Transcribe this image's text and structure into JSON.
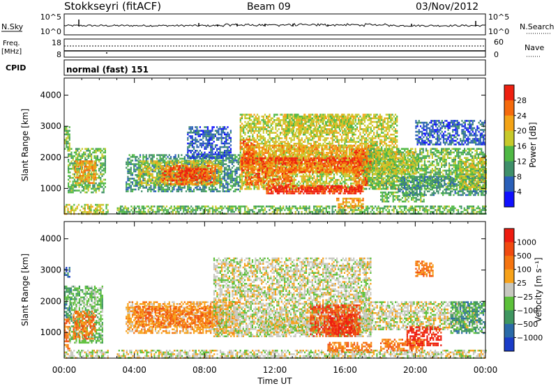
{
  "header": {
    "station": "Stokkseyri (fitACF)",
    "beam": "Beam 09",
    "date": "03/Nov/2012"
  },
  "status_rows": {
    "nsky": {
      "label": "N.Sky",
      "tick_top": "10^5",
      "tick_bottom": "10^0"
    },
    "freq": {
      "label_line1": "Freq.",
      "label_line2": "[MHz]",
      "tick_top": "18",
      "tick_bottom": "8"
    },
    "nsearch": {
      "label": "N.Search",
      "tick_top": "10^5",
      "tick_bottom": "10^0"
    },
    "nave": {
      "label": "Nave",
      "tick_top": "60",
      "tick_bottom": "0"
    },
    "cpid": {
      "label": "CPID",
      "value": "normal (fast) 151"
    }
  },
  "x_axis": {
    "label": "Time UT",
    "ticks": [
      "00:00",
      "04:00",
      "08:00",
      "12:00",
      "16:00",
      "20:00",
      "00:00"
    ]
  },
  "chart_data": [
    {
      "type": "heatmap",
      "id": "power",
      "ylabel": "Slant Range [km]",
      "y_ticks": [
        1000,
        2000,
        3000,
        4000
      ],
      "ylim": [
        180,
        4550
      ],
      "xlim_hours": [
        0,
        24
      ],
      "colorbar": {
        "label": "Power [dB]",
        "ticks": [
          "4",
          "8",
          "12",
          "16",
          "20",
          "24",
          "28"
        ],
        "colors": [
          "#1010ff",
          "#2a5fb8",
          "#3f8f6a",
          "#4fb844",
          "#c7c92a",
          "#f3a316",
          "#f56a0c",
          "#ee2010"
        ]
      },
      "regions": [
        {
          "t": [
            0.0,
            0.3
          ],
          "r": [
            2200,
            3000
          ],
          "level": 3
        },
        {
          "t": [
            0.0,
            2.5
          ],
          "r": [
            180,
            500
          ],
          "level": 4
        },
        {
          "t": [
            0.2,
            2.3
          ],
          "r": [
            900,
            2300
          ],
          "level": 3
        },
        {
          "t": [
            0.6,
            1.8
          ],
          "r": [
            1200,
            1900
          ],
          "level": 5
        },
        {
          "t": [
            3.5,
            10.0
          ],
          "r": [
            900,
            2100
          ],
          "level": 2
        },
        {
          "t": [
            4.2,
            9.0
          ],
          "r": [
            1100,
            1900
          ],
          "level": 4
        },
        {
          "t": [
            5.5,
            8.6
          ],
          "r": [
            1150,
            1750
          ],
          "level": 6
        },
        {
          "t": [
            6.5,
            8.0
          ],
          "r": [
            1250,
            1650
          ],
          "level": 7
        },
        {
          "t": [
            3.0,
            24.0
          ],
          "r": [
            180,
            450
          ],
          "level": 3
        },
        {
          "t": [
            7.0,
            9.5
          ],
          "r": [
            2000,
            3000
          ],
          "level": 1
        },
        {
          "t": [
            10.0,
            19.0
          ],
          "r": [
            1000,
            3400
          ],
          "level": 4
        },
        {
          "t": [
            10.2,
            17.5
          ],
          "r": [
            1500,
            2400
          ],
          "level": 5
        },
        {
          "t": [
            10.0,
            17.5
          ],
          "r": [
            1800,
            2000
          ],
          "level": 7
        },
        {
          "t": [
            11.0,
            17.5
          ],
          "r": [
            1550,
            1850
          ],
          "level": 6
        },
        {
          "t": [
            10.3,
            13.0
          ],
          "r": [
            1100,
            1500
          ],
          "level": 6
        },
        {
          "t": [
            11.5,
            17.0
          ],
          "r": [
            850,
            1100
          ],
          "level": 7
        },
        {
          "t": [
            12.0,
            17.0
          ],
          "r": [
            900,
            1050
          ],
          "level": 7
        },
        {
          "t": [
            15.5,
            17.0
          ],
          "r": [
            400,
            700
          ],
          "level": 5
        },
        {
          "t": [
            17.0,
            24.0
          ],
          "r": [
            1000,
            2300
          ],
          "level": 3
        },
        {
          "t": [
            17.2,
            20.0
          ],
          "r": [
            1500,
            2200
          ],
          "level": 4
        },
        {
          "t": [
            18.0,
            20.5
          ],
          "r": [
            600,
            900
          ],
          "level": 3
        },
        {
          "t": [
            19.0,
            24.0
          ],
          "r": [
            800,
            1400
          ],
          "level": 2
        },
        {
          "t": [
            20.0,
            24.0
          ],
          "r": [
            2400,
            3200
          ],
          "level": 1
        },
        {
          "t": [
            22.5,
            24.0
          ],
          "r": [
            1000,
            2000
          ],
          "level": 4
        },
        {
          "t": [
            12.5,
            16.5
          ],
          "r": [
            2800,
            3400
          ],
          "level": 4
        },
        {
          "t": [
            10.0,
            10.8
          ],
          "r": [
            1500,
            2600
          ],
          "level": 6
        },
        {
          "t": [
            16.5,
            17.2
          ],
          "r": [
            1100,
            2300
          ],
          "level": 6
        }
      ]
    },
    {
      "type": "heatmap",
      "id": "velocity",
      "ylabel": "Slant Range [km]",
      "y_ticks": [
        1000,
        2000,
        3000,
        4000
      ],
      "ylim": [
        180,
        4550
      ],
      "xlim_hours": [
        0,
        24
      ],
      "colorbar": {
        "label": "Velocity [m s⁻¹]",
        "ticks": [
          "1000",
          "500",
          "100",
          "25",
          "−25",
          "−100",
          "−500",
          "−1000"
        ],
        "colors": [
          "#1a3cc8",
          "#2a6aa8",
          "#3f9660",
          "#5cc03a",
          "#c8c8c0",
          "#f7a21a",
          "#f57410",
          "#f04a10",
          "#ee1c10"
        ]
      },
      "regions": [
        {
          "t": [
            0.0,
            2.5
          ],
          "r": [
            180,
            450
          ],
          "level": 4
        },
        {
          "t": [
            0.0,
            0.3
          ],
          "r": [
            500,
            1500
          ],
          "level": 6
        },
        {
          "t": [
            0.3,
            2.2
          ],
          "r": [
            700,
            2500
          ],
          "level": 3
        },
        {
          "t": [
            0.5,
            1.8
          ],
          "r": [
            800,
            1700
          ],
          "level": 6
        },
        {
          "t": [
            0.0,
            0.4
          ],
          "r": [
            1500,
            2500
          ],
          "level": 2
        },
        {
          "t": [
            3.5,
            10.0
          ],
          "r": [
            1000,
            2000
          ],
          "level": 5
        },
        {
          "t": [
            4.0,
            9.0
          ],
          "r": [
            1200,
            1850
          ],
          "level": 6
        },
        {
          "t": [
            3.0,
            24.0
          ],
          "r": [
            180,
            450
          ],
          "level": 4
        },
        {
          "t": [
            8.5,
            17.5
          ],
          "r": [
            900,
            3400
          ],
          "level": 4
        },
        {
          "t": [
            11.0,
            17.5
          ],
          "r": [
            1000,
            1500
          ],
          "level": 4
        },
        {
          "t": [
            14.0,
            16.8
          ],
          "r": [
            900,
            1900
          ],
          "level": 7
        },
        {
          "t": [
            15.0,
            16.5
          ],
          "r": [
            1000,
            1600
          ],
          "level": 8
        },
        {
          "t": [
            15.0,
            17.5
          ],
          "r": [
            400,
            700
          ],
          "level": 6
        },
        {
          "t": [
            17.0,
            23.5
          ],
          "r": [
            1100,
            2000
          ],
          "level": 4
        },
        {
          "t": [
            18.0,
            20.5
          ],
          "r": [
            450,
            800
          ],
          "level": 6
        },
        {
          "t": [
            19.5,
            21.5
          ],
          "r": [
            600,
            1200
          ],
          "level": 8
        },
        {
          "t": [
            22.0,
            24.0
          ],
          "r": [
            1000,
            2000
          ],
          "level": 2
        },
        {
          "t": [
            20.0,
            21.0
          ],
          "r": [
            2800,
            3300
          ],
          "level": 6
        },
        {
          "t": [
            0.0,
            0.3
          ],
          "r": [
            2800,
            3100
          ],
          "level": 1
        }
      ]
    }
  ]
}
